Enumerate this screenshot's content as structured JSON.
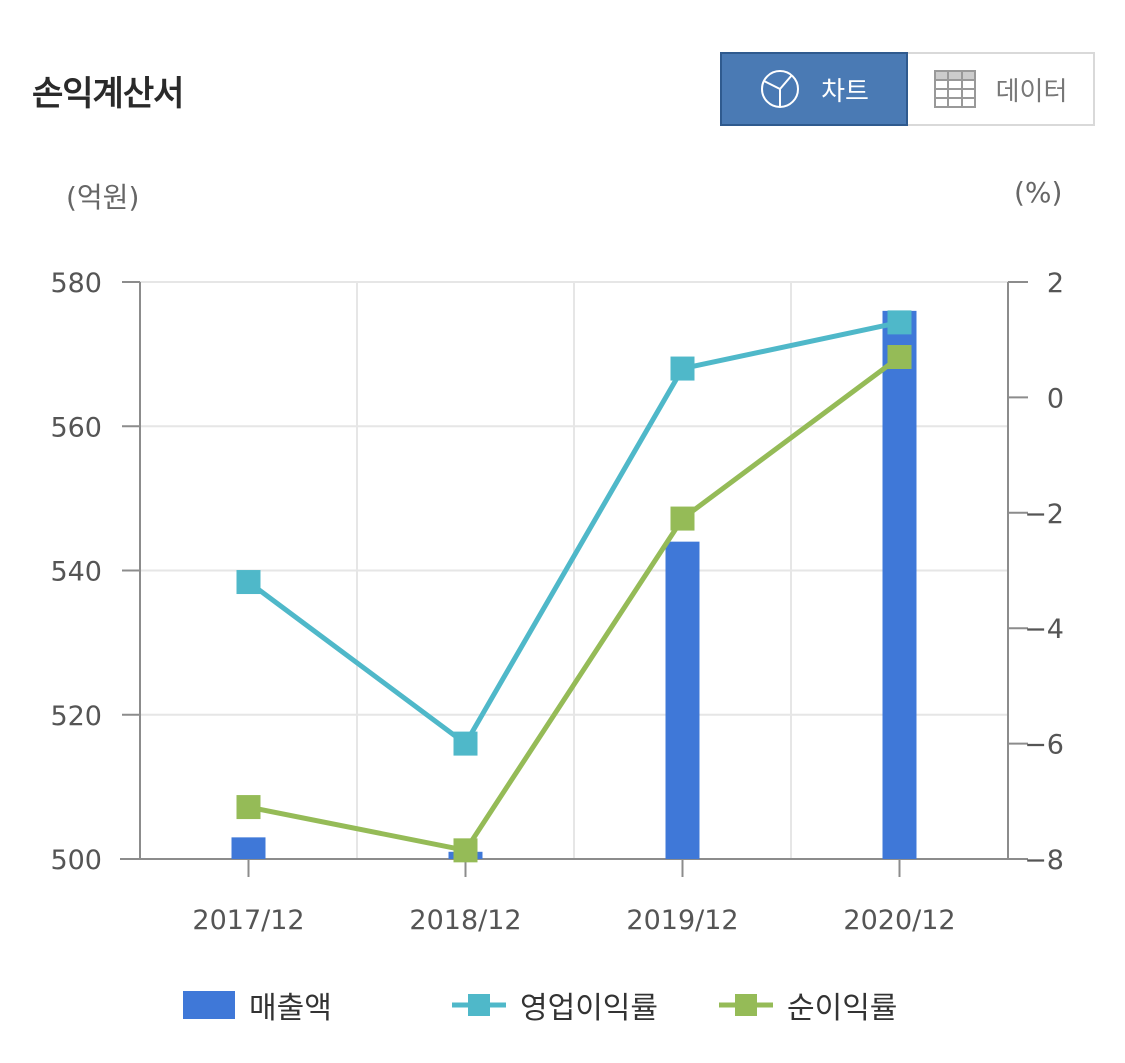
{
  "header": {
    "title": "손익계산서",
    "chart_button_label": "차트",
    "data_button_label": "데이터"
  },
  "axis_units": {
    "left": "(억원)",
    "right": "(%)"
  },
  "colors": {
    "revenue": "#3f78d8",
    "operating_margin": "#4fb8c9",
    "net_margin": "#95bb57",
    "active_button": "#4a7ab4"
  },
  "legend": [
    {
      "label": "매출액",
      "type": "bar",
      "color": "#3f78d8"
    },
    {
      "label": "영업이익률",
      "type": "line",
      "color": "#4fb8c9"
    },
    {
      "label": "순이익률",
      "type": "line",
      "color": "#95bb57"
    }
  ],
  "chart_data": {
    "type": "bar",
    "categories": [
      "2017/12",
      "2018/12",
      "2019/12",
      "2020/12"
    ],
    "series": [
      {
        "name": "매출액",
        "type": "bar",
        "axis": "left",
        "values": [
          503,
          501,
          544,
          576
        ]
      },
      {
        "name": "영업이익률",
        "type": "line",
        "axis": "right",
        "values": [
          -3.2,
          -6.0,
          0.5,
          1.3
        ]
      },
      {
        "name": "순이익률",
        "type": "line",
        "axis": "right",
        "values": [
          -7.1,
          -7.85,
          -2.1,
          0.7
        ]
      }
    ],
    "y_left": {
      "label": "(억원)",
      "ylim": [
        500,
        580
      ],
      "ticks": [
        500,
        520,
        540,
        560,
        580
      ]
    },
    "y_right": {
      "label": "(%)",
      "ylim": [
        -8,
        2
      ],
      "ticks": [
        -8,
        -6,
        -4,
        -2,
        0,
        2
      ]
    },
    "grid": true,
    "legend_position": "bottom"
  }
}
